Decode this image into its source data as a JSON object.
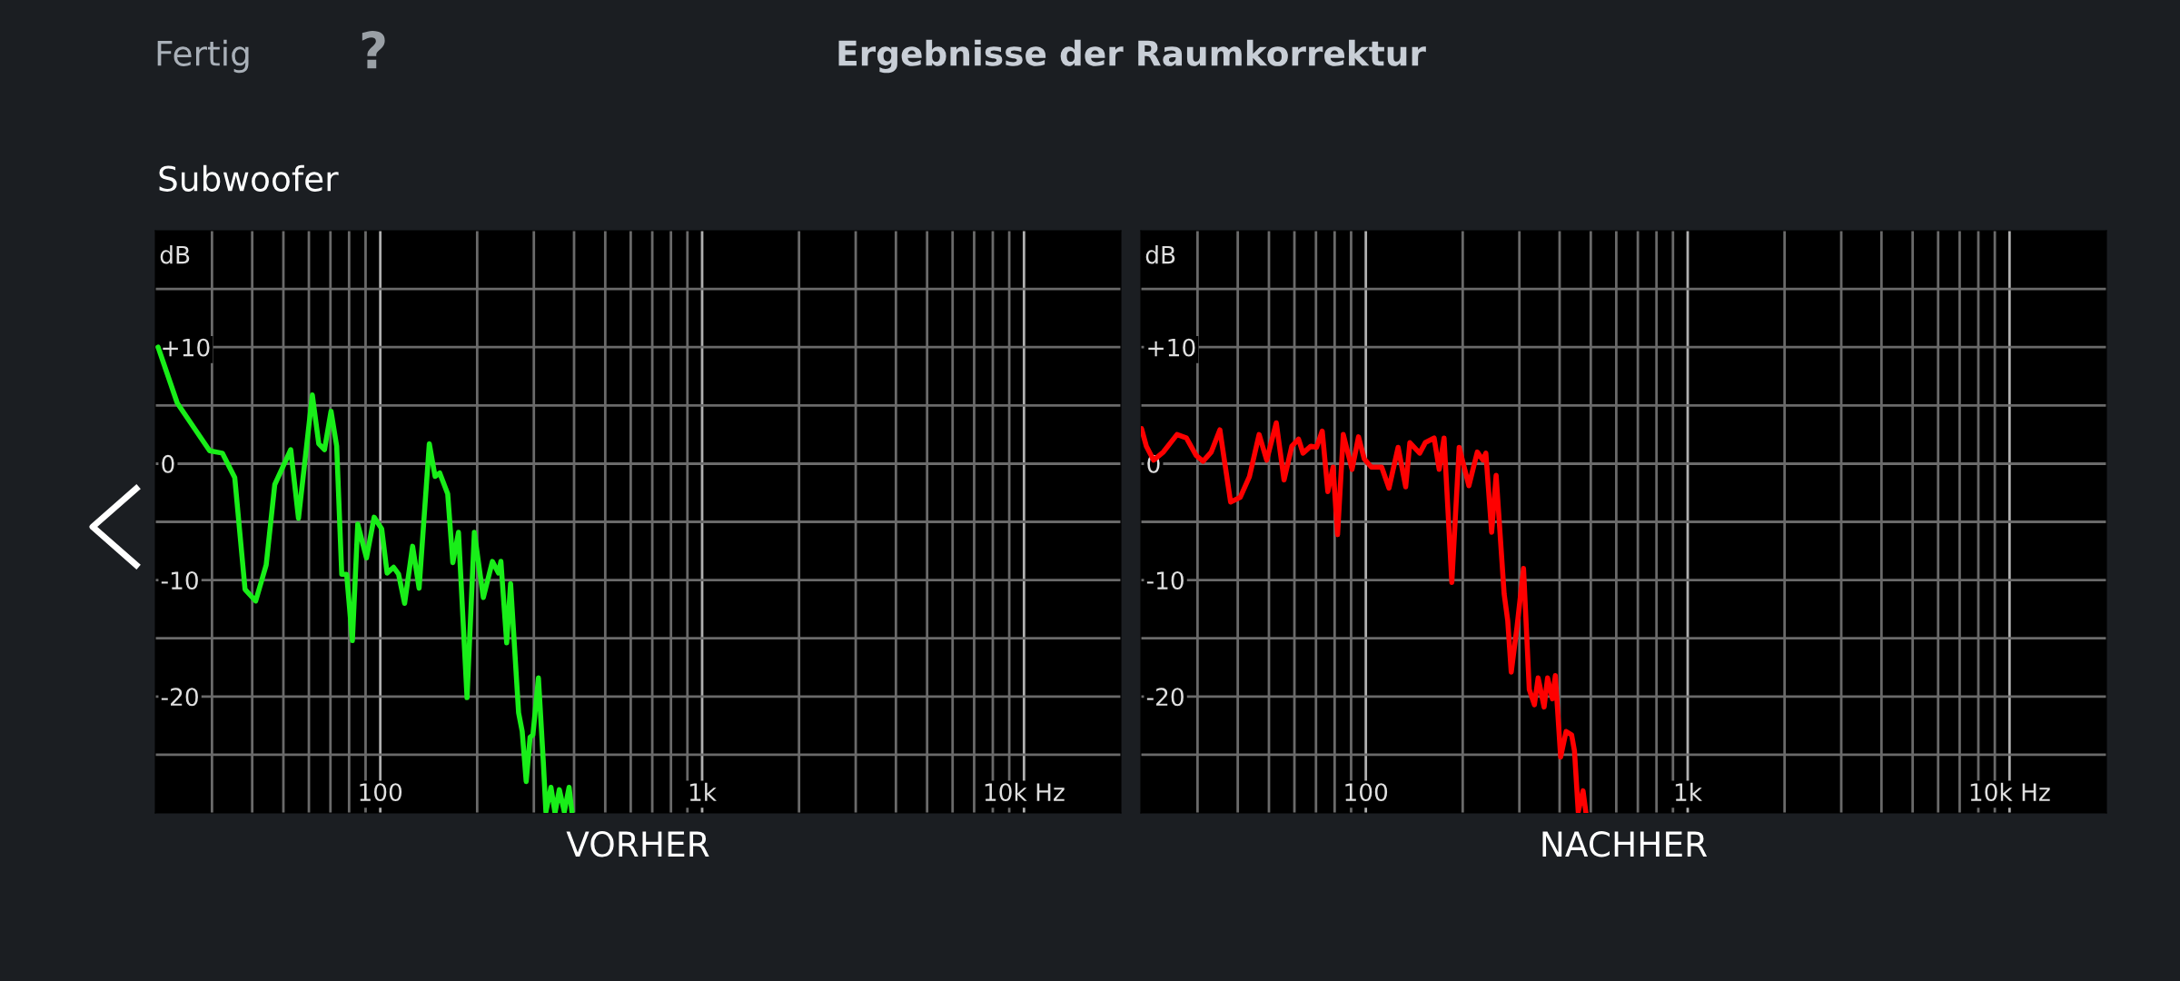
{
  "chart_data": [
    {
      "type": "line",
      "title": "Ergebnisse der Raumkorrektur",
      "subtitle": "Subwoofer",
      "annotations": [
        "Fertig",
        "?"
      ],
      "xlabel": "VORHER",
      "ylabel": "dB",
      "log": "x",
      "grid": true,
      "xlim": [
        20,
        20000
      ],
      "ylim": [
        -30,
        20
      ],
      "xticks": [
        {
          "value": 30,
          "label": null
        },
        {
          "value": 40,
          "label": null
        },
        {
          "value": 50,
          "label": null
        },
        {
          "value": 60,
          "label": null
        },
        {
          "value": 70,
          "label": null
        },
        {
          "value": 80,
          "label": null
        },
        {
          "value": 90,
          "label": null
        },
        100,
        {
          "value": 200,
          "label": null
        },
        {
          "value": 300,
          "label": null
        },
        {
          "value": 400,
          "label": null
        },
        {
          "value": 500,
          "label": null
        },
        {
          "value": 600,
          "label": null
        },
        {
          "value": 700,
          "label": null
        },
        {
          "value": 800,
          "label": null
        },
        {
          "value": 900,
          "label": null
        },
        {
          "value": 1000,
          "label": "1k"
        },
        {
          "value": 2000,
          "label": null
        },
        {
          "value": 3000,
          "label": null
        },
        {
          "value": 4000,
          "label": null
        },
        {
          "value": 5000,
          "label": null
        },
        {
          "value": 6000,
          "label": null
        },
        {
          "value": 7000,
          "label": null
        },
        {
          "value": 8000,
          "label": null
        },
        {
          "value": 9000,
          "label": null
        },
        {
          "value": 10000,
          "label": "10k Hz"
        }
      ],
      "yticks": [
        {
          "value": 15,
          "label": null
        },
        {
          "value": 10,
          "label": "+10"
        },
        {
          "value": 5,
          "label": null
        },
        0,
        {
          "value": -5,
          "label": null
        },
        -10,
        {
          "value": -15,
          "label": null
        },
        -20,
        {
          "value": -25,
          "label": null
        }
      ],
      "ref_lines": [
        {
          "axis": "y",
          "value": 0,
          "color": "#ffffff"
        }
      ],
      "series": [
        {
          "color": "#19ee19",
          "x": [
            20.4,
            23.4,
            26.5,
            29.5,
            32.3,
            35.3,
            38.0,
            41.0,
            44.2,
            47.0,
            52.7,
            55.7,
            61.5,
            64.4,
            67.1,
            70.3,
            73.2,
            75.9,
            78.6,
            81.9,
            85.1,
            90.6,
            95.7,
            101,
            105,
            110,
            114,
            119,
            126,
            132,
            142,
            148,
            153,
            162,
            168,
            175,
            186,
            196,
            209,
            223,
            233,
            237,
            247,
            254,
            269,
            276,
            284,
            292,
            298,
            310,
            321,
            327,
            339,
            349,
            360,
            373,
            386,
            394
          ],
          "values": [
            10.0,
            5.2,
            3.0,
            1.1,
            0.9,
            -1.2,
            -10.8,
            -11.8,
            -8.7,
            -1.8,
            1.2,
            -4.7,
            5.9,
            1.7,
            1.2,
            4.5,
            1.5,
            -9.5,
            -9.5,
            -15.2,
            -5.2,
            -8.1,
            -4.6,
            -5.6,
            -9.4,
            -8.9,
            -9.5,
            -12.0,
            -7.1,
            -10.7,
            1.7,
            -1.1,
            -0.8,
            -2.6,
            -8.5,
            -5.9,
            -20.1,
            -5.9,
            -11.5,
            -8.4,
            -9.4,
            -8.4,
            -15.4,
            -10.3,
            -21.4,
            -23.0,
            -27.3,
            -23.5,
            -23.3,
            -18.4,
            -25.6,
            -29.9,
            -27.8,
            -30,
            -28.0,
            -29.9,
            -27.8,
            -29.9
          ]
        }
      ]
    },
    {
      "type": "line",
      "xlabel": "NACHHER",
      "ylabel": "dB",
      "log": "x",
      "grid": true,
      "xlim": [
        20,
        20000
      ],
      "ylim": [
        -30,
        20
      ],
      "xticks": [
        {
          "value": 30,
          "label": null
        },
        {
          "value": 40,
          "label": null
        },
        {
          "value": 50,
          "label": null
        },
        {
          "value": 60,
          "label": null
        },
        {
          "value": 70,
          "label": null
        },
        {
          "value": 80,
          "label": null
        },
        {
          "value": 90,
          "label": null
        },
        100,
        {
          "value": 200,
          "label": null
        },
        {
          "value": 300,
          "label": null
        },
        {
          "value": 400,
          "label": null
        },
        {
          "value": 500,
          "label": null
        },
        {
          "value": 600,
          "label": null
        },
        {
          "value": 700,
          "label": null
        },
        {
          "value": 800,
          "label": null
        },
        {
          "value": 900,
          "label": null
        },
        {
          "value": 1000,
          "label": "1k"
        },
        {
          "value": 2000,
          "label": null
        },
        {
          "value": 3000,
          "label": null
        },
        {
          "value": 4000,
          "label": null
        },
        {
          "value": 5000,
          "label": null
        },
        {
          "value": 6000,
          "label": null
        },
        {
          "value": 7000,
          "label": null
        },
        {
          "value": 8000,
          "label": null
        },
        {
          "value": 9000,
          "label": null
        },
        {
          "value": 10000,
          "label": "10k Hz"
        }
      ],
      "yticks": [
        {
          "value": 15,
          "label": null
        },
        {
          "value": 10,
          "label": "+10"
        },
        {
          "value": 5,
          "label": null
        },
        0,
        {
          "value": -5,
          "label": null
        },
        -10,
        {
          "value": -15,
          "label": null
        },
        -20,
        {
          "value": -25,
          "label": null
        }
      ],
      "ref_lines": [
        {
          "axis": "y",
          "value": 0,
          "color": "#ffffff"
        }
      ],
      "series": [
        {
          "color": "#ff0000",
          "x": [
            20.1,
            20.8,
            21.9,
            23.5,
            25.9,
            27.7,
            29.7,
            31.2,
            33.1,
            35.2,
            38.0,
            40.7,
            43.5,
            46.6,
            49.2,
            52.7,
            55.7,
            58.9,
            61.8,
            63.8,
            67.5,
            70.3,
            73.2,
            76.2,
            79.1,
            81.7,
            85.1,
            90.6,
            94.9,
            98.9,
            104,
            112,
            118,
            126,
            133,
            137,
            147,
            153,
            163,
            169,
            175,
            185,
            195,
            209,
            222,
            231,
            236,
            246,
            254,
            269,
            276,
            283,
            295,
            309,
            322,
            334,
            343,
            358,
            367,
            380,
            388,
            403,
            419,
            436,
            445,
            457,
            473,
            483
          ],
          "values": [
            3.0,
            1.5,
            0.3,
            1.0,
            2.5,
            2.2,
            0.7,
            0.2,
            1.0,
            2.9,
            -3.3,
            -2.9,
            -1.1,
            2.5,
            0.3,
            3.5,
            -1.4,
            1.5,
            2.1,
            0.9,
            1.5,
            1.4,
            2.8,
            -2.4,
            -0.3,
            -6.1,
            2.5,
            -0.5,
            2.3,
            0.4,
            -0.3,
            -0.3,
            -2.1,
            1.4,
            -2.0,
            1.8,
            0.9,
            1.8,
            2.2,
            -0.5,
            2.2,
            -10.2,
            1.4,
            -1.9,
            1.0,
            0.3,
            0.9,
            -5.9,
            -1.0,
            -11.2,
            -13.5,
            -17.9,
            -14.0,
            -9.0,
            -19.4,
            -20.7,
            -18.4,
            -20.9,
            -18.4,
            -20.2,
            -18.2,
            -25.2,
            -23.0,
            -23.3,
            -24.7,
            -29.9,
            -28.1,
            -30
          ]
        }
      ]
    }
  ]
}
